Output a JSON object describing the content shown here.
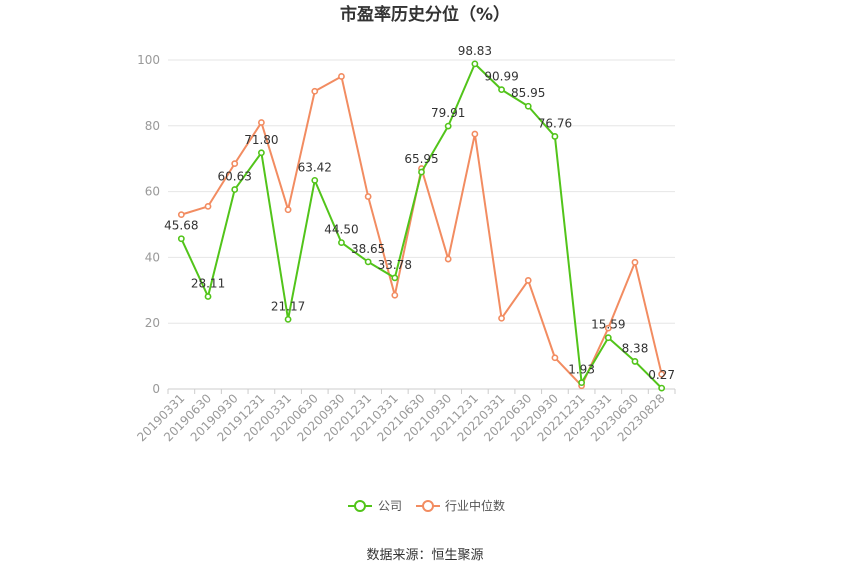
{
  "chart_data": {
    "type": "line",
    "title": "市盈率历史分位（%）",
    "xlabel": "",
    "ylabel": "",
    "ylim": [
      0,
      100
    ],
    "yticks": [
      0,
      20,
      40,
      60,
      80,
      100
    ],
    "grid": true,
    "legend_position": "bottom",
    "categories": [
      "20190331",
      "20190630",
      "20190930",
      "20191231",
      "20200331",
      "20200630",
      "20200930",
      "20201231",
      "20210331",
      "20210630",
      "20210930",
      "20211231",
      "20220331",
      "20220630",
      "20220930",
      "20221231",
      "20230331",
      "20230630",
      "20230828"
    ],
    "series": [
      {
        "name": "公司",
        "color": "#52c41a",
        "values": [
          45.68,
          28.11,
          60.63,
          71.8,
          21.17,
          63.42,
          44.5,
          38.65,
          33.78,
          65.95,
          79.91,
          98.83,
          90.99,
          85.95,
          76.76,
          1.93,
          15.59,
          8.38,
          0.27
        ],
        "data_labels": [
          "45.68",
          "28.11",
          "60.63",
          "71.80",
          "21.17",
          "63.42",
          "44.50",
          "38.65",
          "33.78",
          "65.95",
          "79.91",
          "98.83",
          "90.99",
          "85.95",
          "76.76",
          "1.93",
          "15.59",
          "8.38",
          "0.27"
        ]
      },
      {
        "name": "行业中位数",
        "color": "#f28c61",
        "values": [
          53,
          55.5,
          68.5,
          81,
          54.5,
          90.5,
          95,
          58.5,
          28.5,
          67,
          39.5,
          77.5,
          21.5,
          33,
          9.5,
          1,
          18.5,
          38.5,
          4.5
        ]
      }
    ]
  },
  "source": "数据来源：恒生聚源"
}
